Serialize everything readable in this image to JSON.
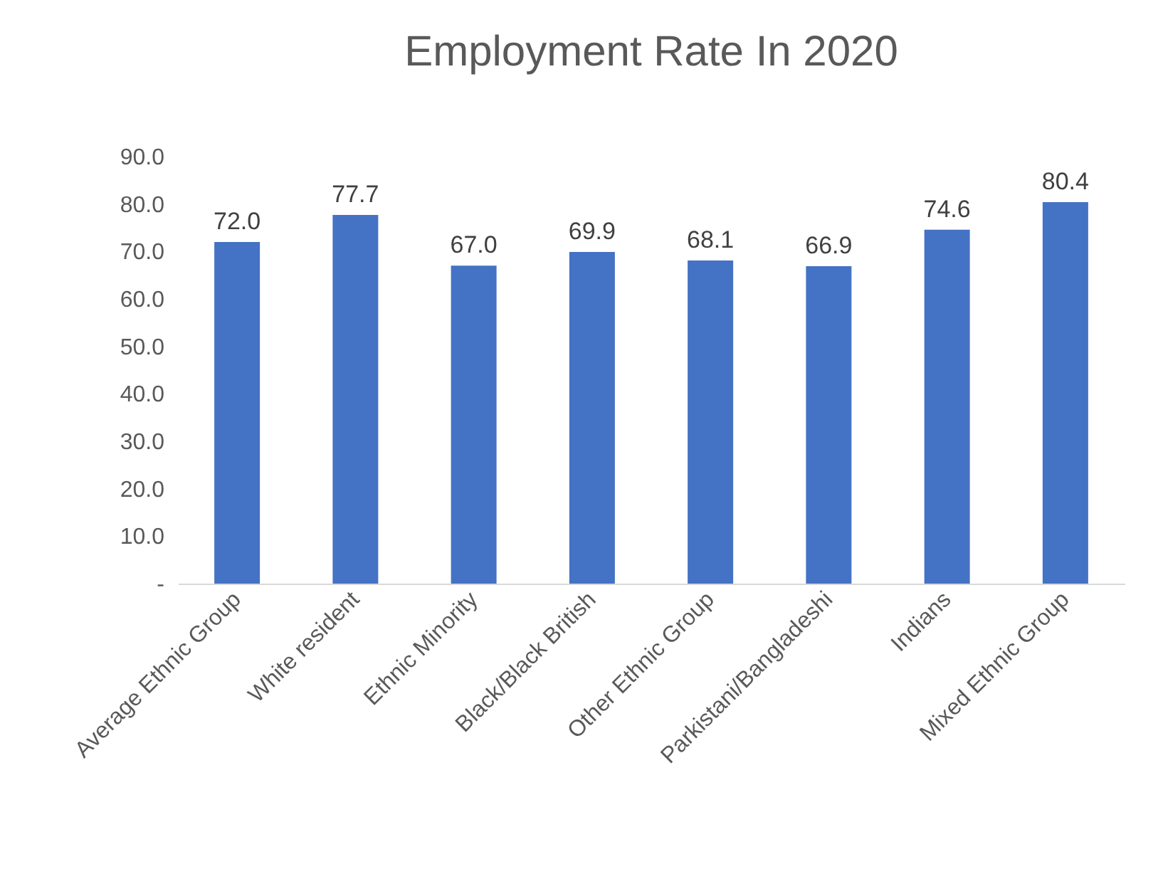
{
  "chart_data": {
    "type": "bar",
    "title": "Employment Rate In 2020",
    "categories": [
      "Average Ethnic Group",
      "White resident",
      "Ethnic Minority",
      "Black/Black British",
      "Other Ethnic Group",
      "Parkistani/Bangladeshi",
      "Indians",
      "Mixed Ethnic Group"
    ],
    "values": [
      72.0,
      77.7,
      67.0,
      69.9,
      68.1,
      66.9,
      74.6,
      80.4
    ],
    "value_labels": [
      "72.0",
      "77.7",
      "67.0",
      "69.9",
      "68.1",
      "66.9",
      "74.6",
      "80.4"
    ],
    "color": "#4472c4",
    "ylim": [
      0,
      90
    ],
    "yticks": [
      {
        "value": 0,
        "label": "-"
      },
      {
        "value": 10,
        "label": "10.0"
      },
      {
        "value": 20,
        "label": "20.0"
      },
      {
        "value": 30,
        "label": "30.0"
      },
      {
        "value": 40,
        "label": "40.0"
      },
      {
        "value": 50,
        "label": "50.0"
      },
      {
        "value": 60,
        "label": "60.0"
      },
      {
        "value": 70,
        "label": "70.0"
      },
      {
        "value": 80,
        "label": "80.0"
      },
      {
        "value": 90,
        "label": "90.0"
      }
    ],
    "grid": false
  }
}
